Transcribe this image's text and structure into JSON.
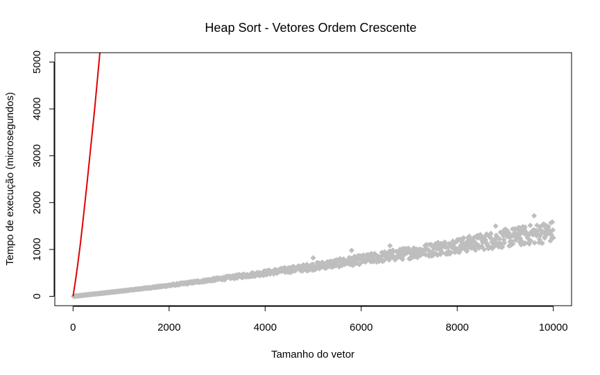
{
  "chart_data": {
    "type": "scatter",
    "title": "Heap Sort - Vetores Ordem Crescente",
    "xlabel": "Tamanho do vetor",
    "ylabel": "Tempo de execução (microsegundos)",
    "xlim": [
      -380,
      10380
    ],
    "ylim": [
      -200,
      5200
    ],
    "xticks": [
      0,
      2000,
      4000,
      6000,
      8000,
      10000
    ],
    "yticks": [
      0,
      1000,
      2000,
      3000,
      4000,
      5000
    ],
    "xtick_labels": [
      "0",
      "2000",
      "4000",
      "6000",
      "8000",
      "10000"
    ],
    "ytick_labels": [
      "0",
      "1000",
      "2000",
      "3000",
      "4000",
      "5000"
    ],
    "grid": false,
    "legend": "none",
    "scatter": {
      "color": "#bebebe",
      "marker": "diamond",
      "trend_x": [
        0,
        1000,
        2000,
        3000,
        4000,
        5000,
        6000,
        7000,
        8000,
        9000,
        10000
      ],
      "trend_y": [
        0,
        110,
        230,
        360,
        490,
        620,
        760,
        900,
        1050,
        1200,
        1340
      ],
      "point_count": 1000,
      "spread": [
        0,
        0.04,
        0.06,
        0.08,
        0.1,
        0.12,
        0.13,
        0.14,
        0.15,
        0.16,
        0.17
      ],
      "outliers": [
        {
          "x": 5000,
          "y": 820
        },
        {
          "x": 5800,
          "y": 980
        },
        {
          "x": 6600,
          "y": 1080
        },
        {
          "x": 7600,
          "y": 1150
        },
        {
          "x": 8800,
          "y": 1500
        },
        {
          "x": 9300,
          "y": 1460
        },
        {
          "x": 9600,
          "y": 1720
        },
        {
          "x": 9800,
          "y": 1540
        }
      ]
    },
    "line": {
      "color": "#e00000",
      "x": [
        0,
        50,
        100,
        150,
        200,
        250,
        300,
        350,
        400,
        450,
        500,
        550,
        600
      ],
      "y": [
        0,
        330,
        700,
        1100,
        1550,
        2020,
        2500,
        3000,
        3500,
        4000,
        4550,
        5100,
        5650
      ]
    }
  }
}
